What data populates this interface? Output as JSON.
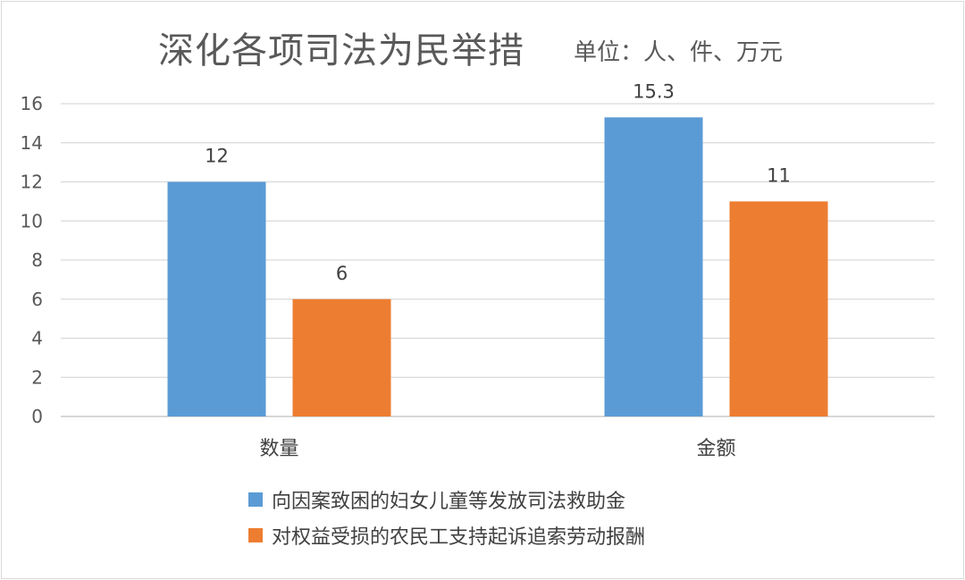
{
  "chart_data": {
    "type": "bar",
    "title": "深化各项司法为民举措",
    "subtitle": "单位：人、件、万元",
    "categories": [
      "数量",
      "金额"
    ],
    "series": [
      {
        "name": "向因案致困的妇女儿童等发放司法救助金",
        "values": [
          12,
          15.3
        ],
        "color": "#5b9bd5"
      },
      {
        "name": "对权益受损的农民工支持起诉追索劳动报酬",
        "values": [
          6,
          11
        ],
        "color": "#ed7d31"
      }
    ],
    "ylim": [
      0,
      16
    ],
    "yticks": [
      0,
      2,
      4,
      6,
      8,
      10,
      12,
      14,
      16
    ],
    "grid": true,
    "legend_position": "bottom",
    "data_labels": true
  }
}
